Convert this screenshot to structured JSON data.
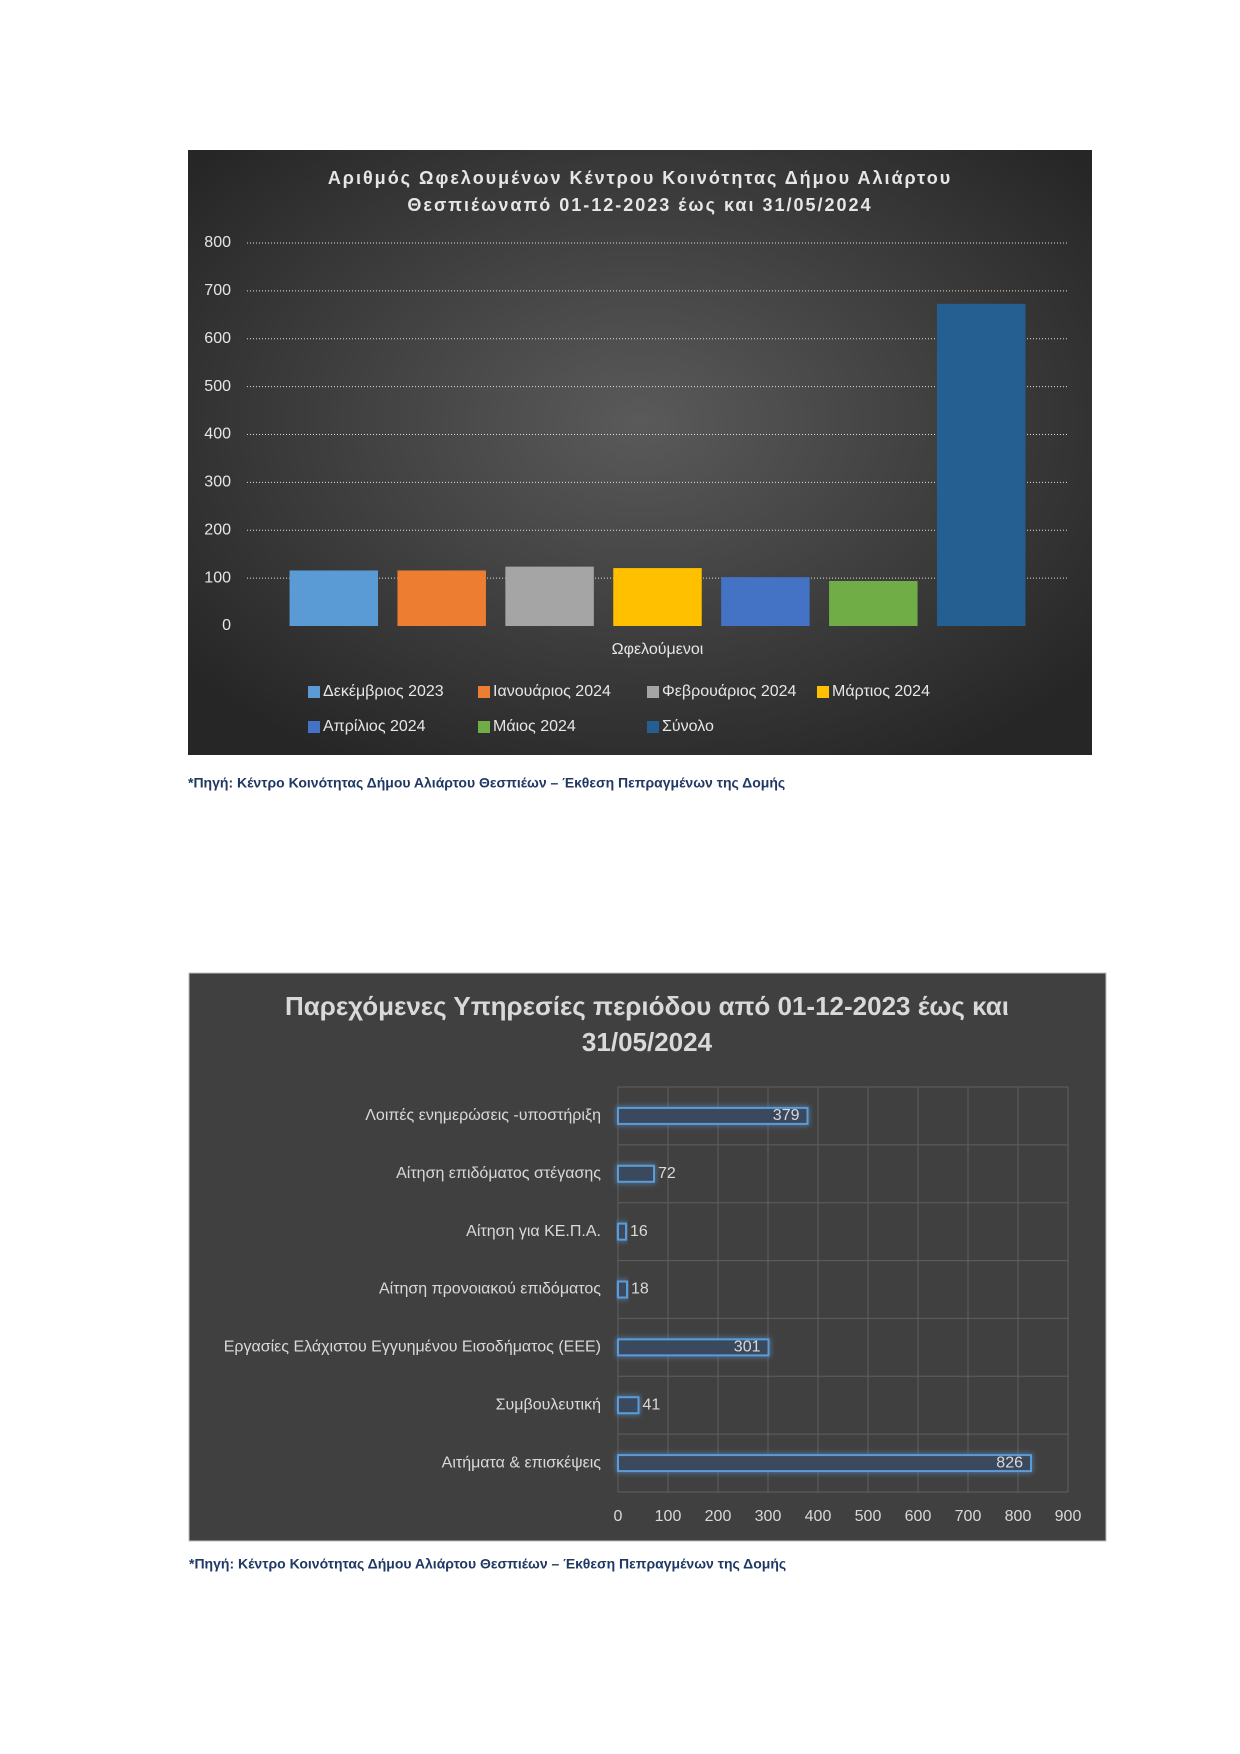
{
  "chart_data": [
    {
      "type": "bar",
      "title": [
        "Αριθμός Ωφελουμένων Κέντρου Κοινότητας Δήμου Αλιάρτου",
        "Θεσπιέωναπό 01-12-2023 έως και 31/05/2024"
      ],
      "categories": [
        "Ωφελούμενοι"
      ],
      "series": [
        {
          "name": "Δεκέμβριος 2023",
          "color": "#5b9bd5",
          "values": [
            116
          ]
        },
        {
          "name": "Ιανουάριος 2024",
          "color": "#ed7d31",
          "values": [
            116
          ]
        },
        {
          "name": "Φεβρουάριος 2024",
          "color": "#a5a5a5",
          "values": [
            124
          ]
        },
        {
          "name": "Μάρτιος 2024",
          "color": "#ffc000",
          "values": [
            121
          ]
        },
        {
          "name": "Απρίλιος 2024",
          "color": "#4472c4",
          "values": [
            102
          ]
        },
        {
          "name": "Μάιος 2024",
          "color": "#70ad47",
          "values": [
            94
          ]
        },
        {
          "name": "Σύνολο",
          "color": "#255e91",
          "values": [
            673
          ]
        }
      ],
      "ylim": [
        0,
        800
      ],
      "yticks": [
        0,
        100,
        200,
        300,
        400,
        500,
        600,
        700,
        800
      ],
      "grid": true,
      "legend": "bottom",
      "source": "*Πηγή: Κέντρο Κοινότητας Δήμου Αλιάρτου Θεσπιέων – Έκθεση Πεπραγμένων της Δομής"
    },
    {
      "type": "hbar",
      "title": [
        "Παρεχόμενες Υπηρεσίες περιόδου από 01-12-2023 έως και",
        "31/05/2024"
      ],
      "categories": [
        "Λοιπές ενημερώσεις -υποστήριξη",
        "Αίτηση επιδόματος στέγασης",
        "Αίτηση για ΚΕ.Π.Α.",
        "Αίτηση προνοιακού επιδόματος",
        "Εργασίες Ελάχιστου Εγγυημένου Εισοδήματος (ΕΕΕ)",
        "Συμβουλευτική",
        "Αιτήματα & επισκέψεις"
      ],
      "values": [
        379,
        72,
        16,
        18,
        301,
        41,
        826
      ],
      "color": "#5b9bd5",
      "xlim": [
        0,
        900
      ],
      "xticks": [
        0,
        100,
        200,
        300,
        400,
        500,
        600,
        700,
        800,
        900
      ],
      "grid": true,
      "source": "*Πηγή: Κέντρο Κοινότητας Δήμου Αλιάρτου Θεσπιέων – Έκθεση Πεπραγμένων της Δομής"
    }
  ]
}
